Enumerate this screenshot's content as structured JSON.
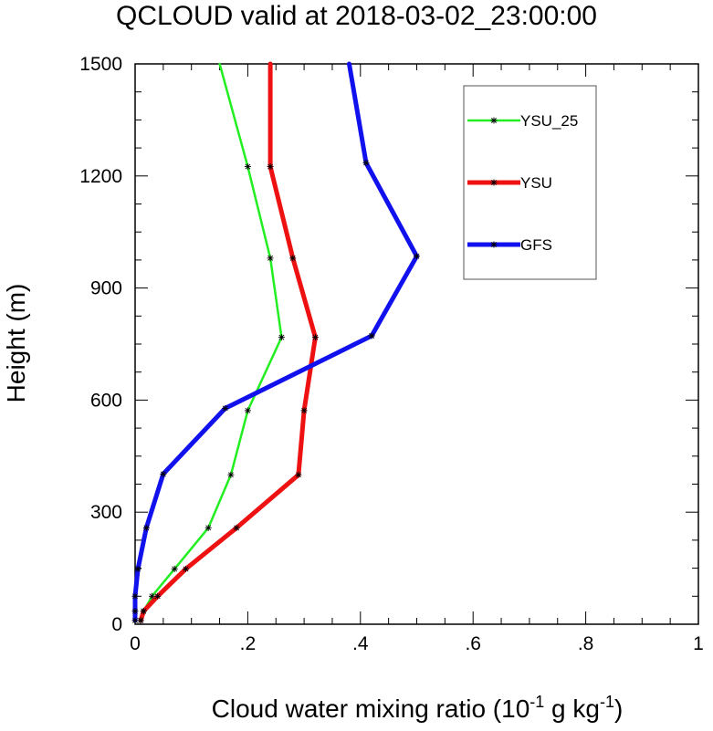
{
  "chart_data": {
    "type": "line",
    "title": "QCLOUD valid at 2018-03-02_23:00:00",
    "xlabel_main": "Cloud water mixing ratio (10",
    "xlabel_exp1": "-1",
    "xlabel_mid": " g kg",
    "xlabel_exp2": "-1",
    "xlabel_end": ")",
    "ylabel": "Height (m)",
    "xlim": [
      0,
      1
    ],
    "ylim": [
      0,
      1500
    ],
    "x_ticks": [
      0,
      0.2,
      0.4,
      0.6,
      0.8,
      1
    ],
    "x_tick_labels": [
      "0",
      ".2",
      ".4",
      ".6",
      ".8",
      "1"
    ],
    "y_ticks": [
      0,
      300,
      600,
      900,
      1200,
      1500
    ],
    "y_tick_labels": [
      "0",
      "300",
      "600",
      "900",
      "1200",
      "1500"
    ],
    "legend_position": "top-right",
    "series": [
      {
        "name": "YSU_25",
        "color": "#22ee22",
        "width": 2.5,
        "points": [
          [
            0.15,
            1500
          ],
          [
            0.2,
            1225
          ],
          [
            0.24,
            980
          ],
          [
            0.26,
            768
          ],
          [
            0.2,
            572
          ],
          [
            0.17,
            400
          ],
          [
            0.13,
            258
          ],
          [
            0.07,
            148
          ],
          [
            0.03,
            75
          ],
          [
            0.015,
            35
          ],
          [
            0.01,
            10
          ]
        ]
      },
      {
        "name": "YSU",
        "color": "#ee1111",
        "width": 5,
        "points": [
          [
            0.24,
            1500
          ],
          [
            0.24,
            1225
          ],
          [
            0.28,
            980
          ],
          [
            0.32,
            768
          ],
          [
            0.3,
            572
          ],
          [
            0.29,
            400
          ],
          [
            0.18,
            258
          ],
          [
            0.09,
            148
          ],
          [
            0.04,
            75
          ],
          [
            0.015,
            35
          ],
          [
            0.01,
            10
          ]
        ]
      },
      {
        "name": "GFS",
        "color": "#1111ee",
        "width": 5,
        "points": [
          [
            0.38,
            1500
          ],
          [
            0.41,
            1235
          ],
          [
            0.5,
            985
          ],
          [
            0.42,
            772
          ],
          [
            0.16,
            578
          ],
          [
            0.05,
            402
          ],
          [
            0.02,
            258
          ],
          [
            0.005,
            148
          ],
          [
            0.0,
            75
          ],
          [
            0.0,
            35
          ],
          [
            0.0,
            10
          ]
        ]
      }
    ]
  }
}
